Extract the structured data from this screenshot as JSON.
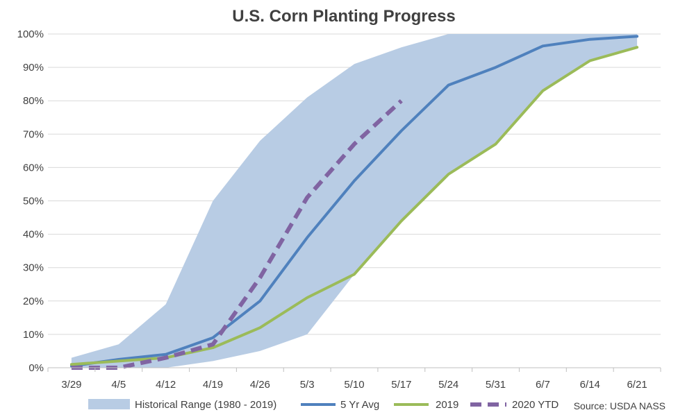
{
  "chart_data": {
    "type": "line",
    "title": "U.S. Corn Planting Progress",
    "xlabel": "",
    "ylabel": "",
    "categories": [
      "3/29",
      "4/5",
      "4/12",
      "4/19",
      "4/26",
      "5/3",
      "5/10",
      "5/17",
      "5/24",
      "5/31",
      "6/7",
      "6/14",
      "6/21"
    ],
    "ylim": [
      0,
      100
    ],
    "yticks": [
      0,
      10,
      20,
      30,
      40,
      50,
      60,
      70,
      80,
      90,
      100
    ],
    "ytick_labels": [
      "0%",
      "10%",
      "20%",
      "30%",
      "40%",
      "50%",
      "60%",
      "70%",
      "80%",
      "90%",
      "100%"
    ],
    "grid": "horizontal",
    "legend": "bottom",
    "range": {
      "name": "Historical Range (1980 - 2019)",
      "color": "#b8cce4",
      "low": [
        0,
        0,
        0,
        2,
        5,
        10,
        28,
        44,
        58,
        67,
        83,
        92,
        96
      ],
      "high": [
        3,
        7,
        19,
        50,
        68,
        81,
        91,
        96,
        100,
        100,
        100,
        100,
        100
      ]
    },
    "series": [
      {
        "name": "5 Yr Avg",
        "color": "#4f81bd",
        "dashed": false,
        "values": [
          0.5,
          2.5,
          4,
          9,
          20,
          39,
          56,
          71,
          84.7,
          90,
          96.4,
          98.4,
          99.3
        ]
      },
      {
        "name": "2019",
        "color": "#9bbb59",
        "dashed": false,
        "values": [
          1,
          2,
          3,
          6,
          12,
          21,
          28,
          44,
          58,
          67,
          83,
          92,
          96
        ]
      },
      {
        "name": "2020 YTD",
        "color": "#8064a2",
        "dashed": true,
        "values": [
          0,
          0,
          3,
          7,
          27,
          51,
          67,
          80,
          null,
          null,
          null,
          null,
          null
        ]
      }
    ],
    "source": "Source: USDA NASS"
  }
}
